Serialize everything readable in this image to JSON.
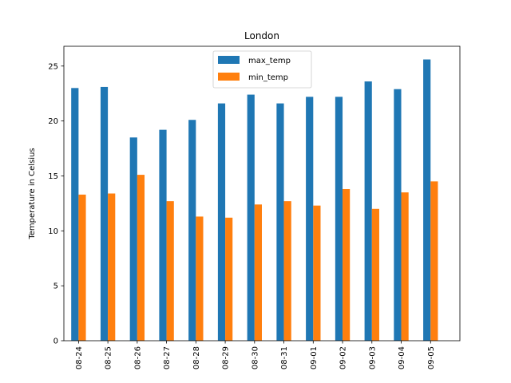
{
  "chart_data": {
    "type": "bar",
    "title": "London",
    "xlabel": "",
    "ylabel": "Temperature in Celsius",
    "ylim": [
      0,
      26.8
    ],
    "yticks": [
      0,
      5,
      10,
      15,
      20,
      25
    ],
    "grid": false,
    "legend_position": "top-center",
    "categories": [
      "08-24",
      "08-25",
      "08-26",
      "08-27",
      "08-28",
      "08-29",
      "08-30",
      "08-31",
      "09-01",
      "09-02",
      "09-03",
      "09-04",
      "09-05"
    ],
    "series": [
      {
        "name": "max_temp",
        "color": "#1f77b4",
        "values": [
          23.0,
          23.1,
          18.5,
          19.2,
          20.1,
          21.6,
          22.4,
          21.6,
          22.2,
          22.2,
          23.6,
          22.9,
          25.6
        ]
      },
      {
        "name": "min_temp",
        "color": "#ff7f0e",
        "values": [
          13.3,
          13.4,
          15.1,
          12.7,
          11.3,
          11.2,
          12.4,
          12.7,
          12.3,
          13.8,
          12.0,
          13.5,
          14.5
        ]
      }
    ]
  }
}
